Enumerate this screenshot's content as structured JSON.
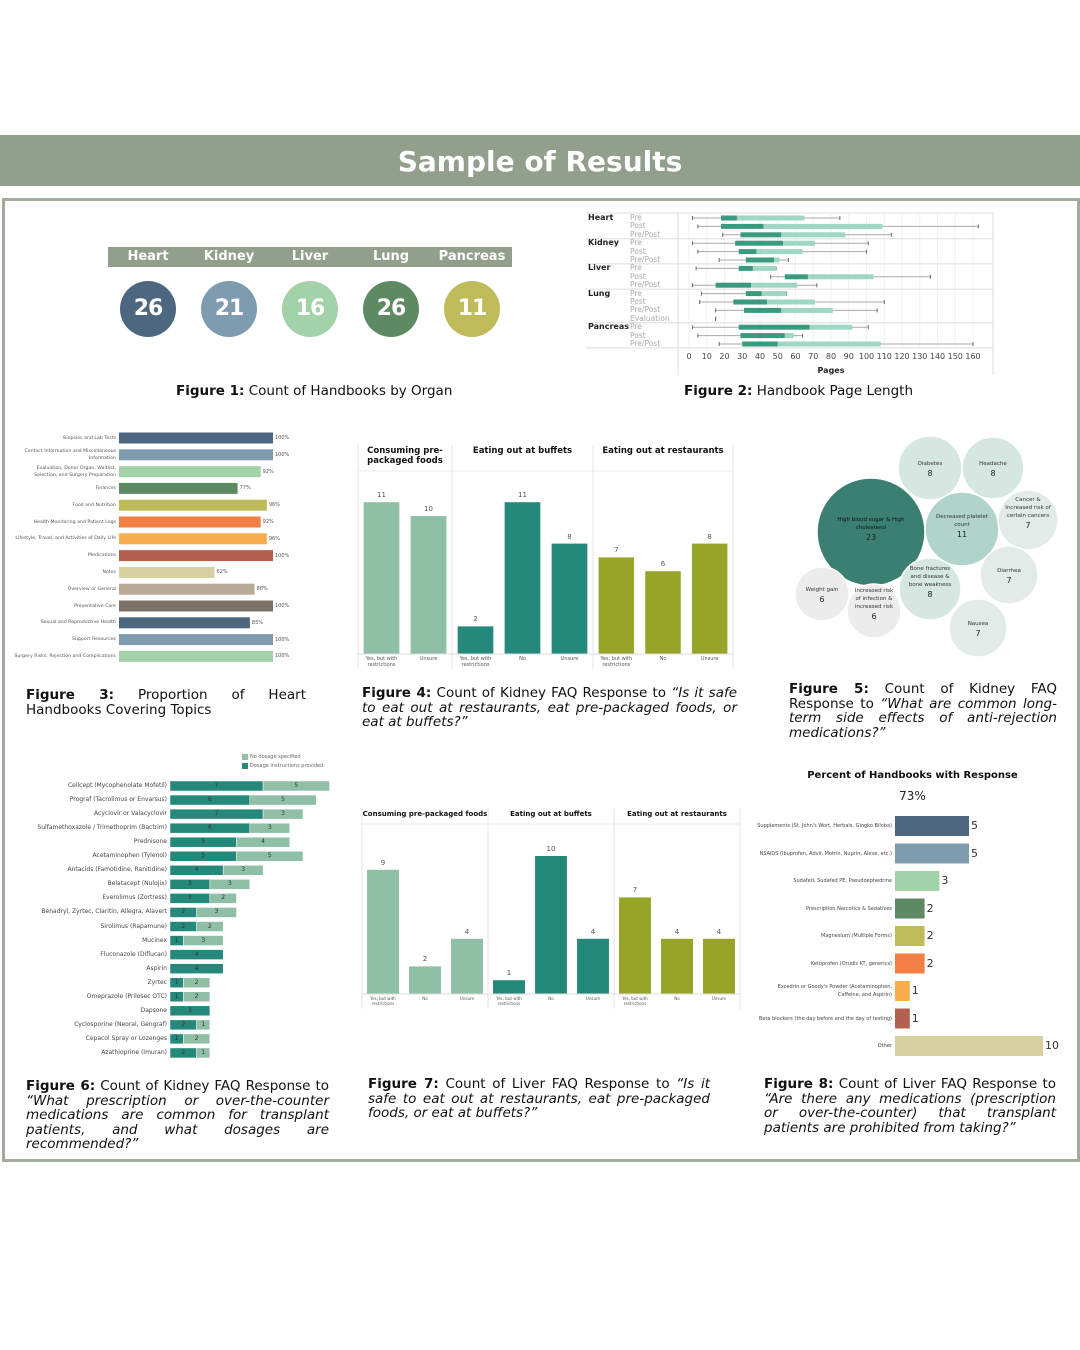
{
  "title": "Sample of Results",
  "captions": [
    {
      "label": "Figure 1:",
      "text": "Count of Handbooks by Organ"
    },
    {
      "label": "Figure 2:",
      "text": "Handbook Page Length"
    },
    {
      "label": "Figure 3:",
      "text": "Proportion of Heart Handbooks Covering Topics"
    },
    {
      "label": "Figure 4:",
      "text": "Count of Kidney FAQ Response to ",
      "quote": "“Is it safe to eat out at restaurants, eat pre-packaged foods, or eat at buffets?”"
    },
    {
      "label": "Figure 5:",
      "text": "Count of Kidney FAQ Response to ",
      "quote": "“What are common long-term side effects of anti-rejection medications?”"
    },
    {
      "label": "Figure 6:",
      "text": "Count of Kidney FAQ Response to ",
      "quote": "“What prescription or over-the-counter medications are common for transplant patients, and what dosages are recommended?”"
    },
    {
      "label": "Figure 7:",
      "text": "Count of Liver FAQ Response to ",
      "quote": "“Is it safe to eat out at restaurants, eat pre-packaged foods, or eat at buffets?”"
    },
    {
      "label": "Figure 8:",
      "text": "Count of Liver FAQ Response to ",
      "quote": "“Are there any medications (prescription or over-the-counter) that transplant patients are prohibited from taking?”"
    }
  ],
  "chart_data": [
    {
      "type": "table",
      "categories": [
        "Heart",
        "Kidney",
        "Liver",
        "Lung",
        "Pancreas"
      ],
      "values": [
        26,
        21,
        16,
        26,
        11
      ],
      "colors": [
        "#4d6780",
        "#7f9bb0",
        "#a3d1a8",
        "#5e8a63",
        "#c0bb5a"
      ]
    },
    {
      "type": "boxplot",
      "xlabel": "Pages",
      "xlim": [
        0,
        160
      ],
      "ticks": [
        "0",
        "10",
        "20",
        "30",
        "40",
        "50",
        "60",
        "70",
        "80",
        "90",
        "100",
        "110",
        "120",
        "130",
        "140",
        "150",
        "160"
      ],
      "groups": [
        {
          "name": "Heart",
          "rows": [
            {
              "label": "Pre",
              "stats": [
                2,
                18,
                27,
                65,
                85
              ]
            },
            {
              "label": "Post",
              "stats": [
                5,
                18,
                42,
                109,
                163
              ]
            },
            {
              "label": "Pre/Post",
              "stats": [
                19,
                29,
                52,
                88,
                114
              ]
            }
          ]
        },
        {
          "name": "Kidney",
          "rows": [
            {
              "label": "Pre",
              "stats": [
                2,
                26,
                53,
                71,
                101
              ]
            },
            {
              "label": "Post",
              "stats": [
                5,
                28,
                38,
                64,
                100
              ]
            },
            {
              "label": "Pre/Post",
              "stats": [
                17,
                32,
                48,
                51,
                56
              ]
            }
          ]
        },
        {
          "name": "Liver",
          "rows": [
            {
              "label": "Pre",
              "stats": [
                4,
                28,
                36,
                49,
                49
              ]
            },
            {
              "label": "Post",
              "stats": [
                46,
                54,
                67,
                104,
                136
              ]
            },
            {
              "label": "Pre/Post",
              "stats": [
                2,
                15,
                35,
                61,
                72
              ]
            }
          ]
        },
        {
          "name": "Lung",
          "rows": [
            {
              "label": "Pre",
              "stats": [
                7,
                32,
                41,
                55,
                55
              ]
            },
            {
              "label": "Post",
              "stats": [
                6,
                25,
                44,
                71,
                110
              ]
            },
            {
              "label": "Pre/Post",
              "stats": [
                15,
                31,
                52,
                81,
                106
              ]
            },
            {
              "label": "Evaluation",
              "stats": [
                15,
                15,
                15,
                15,
                15
              ]
            }
          ]
        },
        {
          "name": "Pancreas",
          "rows": [
            {
              "label": "Pre",
              "stats": [
                2,
                28,
                68,
                92,
                101
              ]
            },
            {
              "label": "Post",
              "stats": [
                5,
                29,
                54,
                59,
                64
              ]
            },
            {
              "label": "Pre/Post",
              "stats": [
                17,
                30,
                50,
                108,
                160
              ]
            }
          ]
        }
      ],
      "colors": {
        "lower": "#3a9a80",
        "upper": "#9fd6c4"
      }
    },
    {
      "type": "bar",
      "orientation": "horizontal",
      "categories": [
        "Biopsies and Lab Tests",
        "Contact Information and Miscellaneous Information",
        "Evaluation, Donor Organ, Waitlist, Selection, and Surgery Preparation",
        "Finances",
        "Food and Nutrition",
        "Health Monitoring and Patient Logs",
        "Lifestyle, Travel, and Activities of Daily Life",
        "Medications",
        "Notes",
        "Overview or General",
        "Preventative Care",
        "Sexual and Reproductive Health",
        "Support Resources",
        "Surgery Risks, Rejection and Complications"
      ],
      "values": [
        100,
        100,
        92,
        77,
        96,
        92,
        96,
        100,
        62,
        88,
        100,
        85,
        100,
        100
      ],
      "labels": [
        "100%",
        "100%",
        "92%",
        "77%",
        "96%",
        "92%",
        "96%",
        "100%",
        "62%",
        "88%",
        "100%",
        "85%",
        "100%",
        "100%"
      ],
      "colors": [
        "#4d6780",
        "#7f9bb0",
        "#a3d1a8",
        "#5e8a63",
        "#c0bb5a",
        "#f47f45",
        "#f9ae4d",
        "#b4604f",
        "#d8d0a0",
        "#b9aa96",
        "#7c7266",
        "#4d6780",
        "#7f9bb0",
        "#a3d1a8"
      ],
      "xlim": [
        0,
        100
      ]
    },
    {
      "type": "bar",
      "panels": [
        {
          "title": "Consuming pre-packaged foods",
          "color": "#8fbfa5",
          "categories": [
            "Yes, but with restrictions",
            "Unsure"
          ],
          "values": [
            11,
            10
          ]
        },
        {
          "title": "Eating out at buffets",
          "color": "#24897a",
          "categories": [
            "Yes, but with restrictions",
            "No",
            "Unsure"
          ],
          "values": [
            2,
            11,
            8
          ]
        },
        {
          "title": "Eating out at restaurants",
          "color": "#97a428",
          "categories": [
            "Yes, but with restrictions",
            "No",
            "Unsure"
          ],
          "values": [
            7,
            6,
            8
          ]
        }
      ]
    },
    {
      "type": "bubble",
      "items": [
        {
          "label": "High blood sugar & High cholesterol",
          "value": 23,
          "color": "#3a7f72"
        },
        {
          "label": "Decreased platelet count",
          "value": 11,
          "color": "#b0d4cc"
        },
        {
          "label": "Diabetes",
          "value": 8,
          "color": "#d6e6e1"
        },
        {
          "label": "Headache",
          "value": 8,
          "color": "#d6e6e1"
        },
        {
          "label": "Bone fractures and disease & bone weakness",
          "value": 8,
          "color": "#d6e6e1"
        },
        {
          "label": "Cancer & Increased risk of certain cancers",
          "value": 7,
          "color": "#e2ebe8"
        },
        {
          "label": "Diarrhea",
          "value": 7,
          "color": "#e2ebe8"
        },
        {
          "label": "Nausea",
          "value": 7,
          "color": "#e2ebe8"
        },
        {
          "label": "Weight gain",
          "value": 6,
          "color": "#ececec"
        },
        {
          "label": "Increased risk of infection & increased risk",
          "value": 6,
          "color": "#ececec"
        }
      ]
    },
    {
      "type": "bar",
      "orientation": "horizontal",
      "stacked": true,
      "legend": "top-right",
      "series": [
        {
          "name": "Dosage instructions provided",
          "color": "#24897a",
          "values": [
            7,
            6,
            7,
            6,
            5,
            5,
            4,
            3,
            3,
            2,
            2,
            1,
            4,
            4,
            1,
            1,
            3,
            2,
            1,
            2
          ]
        },
        {
          "name": "No dosage specified",
          "color": "#8fbfa5",
          "values": [
            5,
            5,
            3,
            3,
            4,
            5,
            3,
            3,
            2,
            3,
            2,
            3,
            0,
            0,
            2,
            2,
            0,
            1,
            2,
            1
          ]
        }
      ],
      "categories": [
        "Cellcept (Mycophenolate Mofetil)",
        "Prograf (Tacrolimus or Envarsus)",
        "Acyclovir or Valacyclovir",
        "Sulfamethoxazole / Trimethoprim (Bactrim)",
        "Prednisone",
        "Acetaminophen (Tylenol)",
        "Antacids (Famotidine, Ranitidine)",
        "Belatacept (Nulojix)",
        "Everolimus (Zortress)",
        "Benadryl, Zyrtec, Claritin, Allegra, Alavert",
        "Sirolimus (Rapamune)",
        "Mucinex",
        "Fluconazole (Diflucan)",
        "Aspirin",
        "Zyrtec",
        "Omeprazole (Prilosec OTC)",
        "Dapsone",
        "Cyclosporine (Neoral, Gengraf)",
        "Cepacol Spray or Lozenges",
        "Azathioprine (Imuran)"
      ]
    },
    {
      "type": "bar",
      "panels": [
        {
          "title": "Consuming pre-packaged foods",
          "color": "#8fbfa5",
          "categories": [
            "Yes, but with restrictions",
            "No",
            "Unsure"
          ],
          "values": [
            9,
            2,
            4
          ]
        },
        {
          "title": "Eating out at buffets",
          "color": "#24897a",
          "categories": [
            "Yes, but with restrictions",
            "No",
            "Unsure"
          ],
          "values": [
            1,
            10,
            4
          ]
        },
        {
          "title": "Eating out at restaurants",
          "color": "#97a428",
          "categories": [
            "Yes, but with restrictions",
            "No",
            "Unsure"
          ],
          "values": [
            7,
            4,
            4
          ]
        }
      ]
    },
    {
      "type": "bar",
      "orientation": "horizontal",
      "title": "Percent of Handbooks with Response",
      "subtitle": "73%",
      "categories": [
        "Supplements (St. John's Wort, Herbals, Gingko Biloba)",
        "NSAIDS (Ibuprofen, Advil, Motrin, Nuprin, Aleve, etc.)",
        "Sudafed, Sudafed PE, Pseudoephedrine",
        "Prescription Narcotics & Sedatives",
        "Magnesium (Multiple Forms)",
        "Ketoprofen (Orudis KT, generics)",
        "Excedrin or Goody's Powder (Acetaminophen, Caffeine, and Aspirin)",
        "Beta blockers (the day before and the day of testing)",
        "Other"
      ],
      "values": [
        5,
        5,
        3,
        2,
        2,
        2,
        1,
        1,
        10
      ],
      "colors": [
        "#4d6780",
        "#7f9bb0",
        "#a3d1a8",
        "#5e8a63",
        "#c0bb5a",
        "#f47f45",
        "#f9ae4d",
        "#b4604f",
        "#d8d0a0"
      ]
    }
  ]
}
